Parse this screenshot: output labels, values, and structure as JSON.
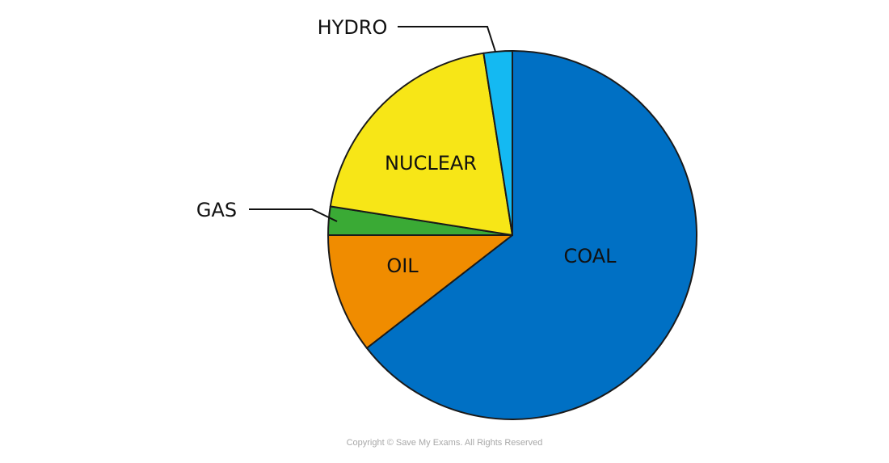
{
  "chart_data": {
    "type": "pie",
    "start_angle_deg": 0,
    "direction": "clockwise",
    "slices": [
      {
        "label": "COAL",
        "value": 64.5,
        "color": "#0070C4"
      },
      {
        "label": "OIL",
        "value": 10.5,
        "color": "#F08C00"
      },
      {
        "label": "GAS",
        "value": 2.5,
        "color": "#3AAA35"
      },
      {
        "label": "NUCLEAR",
        "value": 20,
        "color": "#F7E617"
      },
      {
        "label": "HYDRO",
        "value": 2.5,
        "color": "#14B9F2"
      }
    ]
  },
  "footer": {
    "copyright": "Copyright © Save My Exams. All Rights Reserved"
  }
}
